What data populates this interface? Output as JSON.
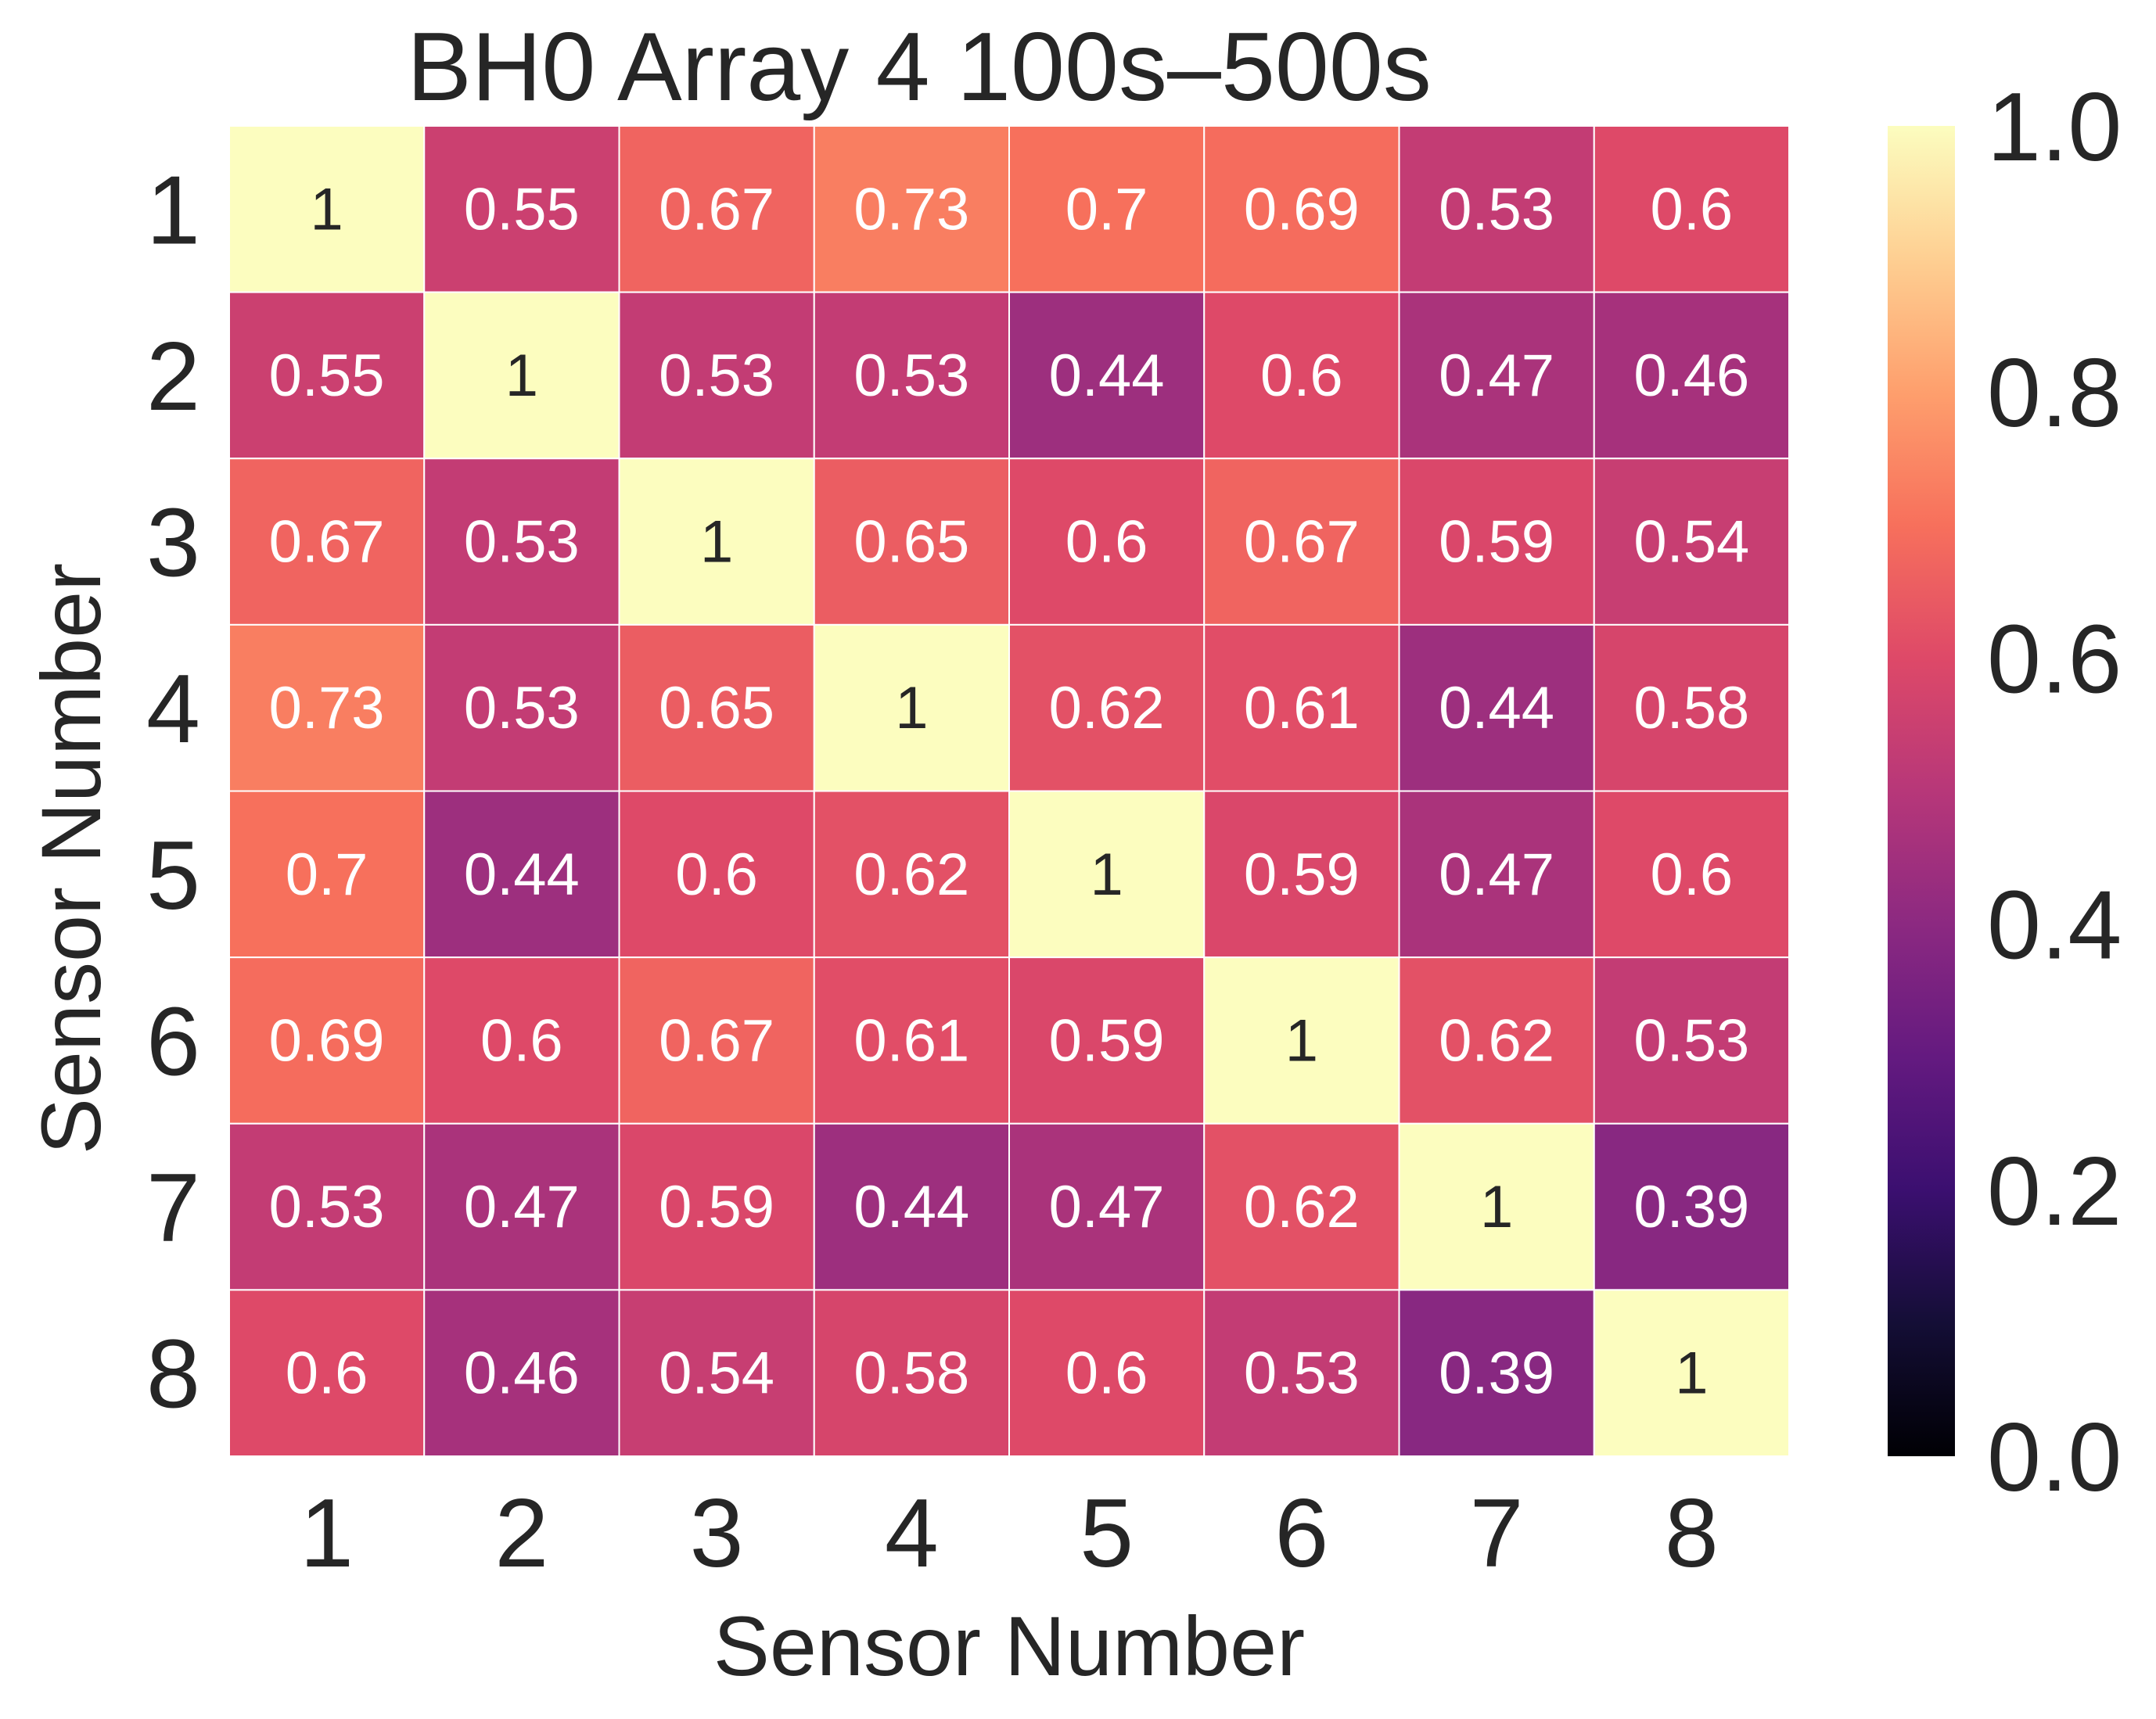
{
  "chart_data": {
    "type": "heatmap",
    "title": "BH0 Array 4 100s–500s",
    "xlabel": "Sensor Number",
    "ylabel": "Sensor Number",
    "x_categories": [
      "1",
      "2",
      "3",
      "4",
      "5",
      "6",
      "7",
      "8"
    ],
    "y_categories": [
      "1",
      "2",
      "3",
      "4",
      "5",
      "6",
      "7",
      "8"
    ],
    "matrix": [
      [
        1,
        0.55,
        0.67,
        0.73,
        0.7,
        0.69,
        0.53,
        0.6
      ],
      [
        0.55,
        1,
        0.53,
        0.53,
        0.44,
        0.6,
        0.47,
        0.46
      ],
      [
        0.67,
        0.53,
        1,
        0.65,
        0.6,
        0.67,
        0.59,
        0.54
      ],
      [
        0.73,
        0.53,
        0.65,
        1,
        0.62,
        0.61,
        0.44,
        0.58
      ],
      [
        0.7,
        0.44,
        0.6,
        0.62,
        1,
        0.59,
        0.47,
        0.6
      ],
      [
        0.69,
        0.6,
        0.67,
        0.61,
        0.59,
        1,
        0.62,
        0.53
      ],
      [
        0.53,
        0.47,
        0.59,
        0.44,
        0.47,
        0.62,
        1,
        0.39
      ],
      [
        0.6,
        0.46,
        0.54,
        0.58,
        0.6,
        0.53,
        0.39,
        1
      ]
    ],
    "colorscale": "magma",
    "vmin": 0,
    "vmax": 1,
    "colorbar_ticks": [
      "0.0",
      "0.2",
      "0.4",
      "0.6",
      "0.8",
      "1.0"
    ],
    "colorbar_tick_values": [
      0,
      0.2,
      0.4,
      0.6,
      0.8,
      1.0
    ],
    "annotation_colors": {
      "light": "#ffffff",
      "dark": "#262626"
    },
    "text_color": "#262626",
    "grid_line_color": "#ffffff"
  }
}
